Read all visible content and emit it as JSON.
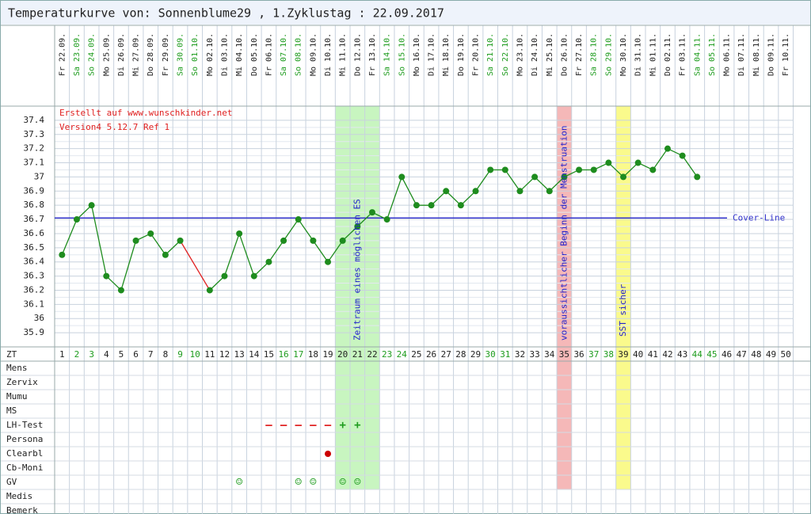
{
  "chart_data": {
    "type": "line",
    "title": "Temperaturkurve von: Sonnenblume29 , 1.Zyklustag : 22.09.2017",
    "annotations": [
      "Erstellt auf www.wunschkinder.net",
      "Version4 5.12.7 Ref 1"
    ],
    "categories": [
      "Fr 22.09.",
      "Sa 23.09.",
      "So 24.09.",
      "Mo 25.09.",
      "Di 26.09.",
      "Mi 27.09.",
      "Do 28.09.",
      "Fr 29.09.",
      "Sa 30.09.",
      "So 01.10.",
      "Mo 02.10.",
      "Di 03.10.",
      "Mi 04.10.",
      "Do 05.10.",
      "Fr 06.10.",
      "Sa 07.10.",
      "So 08.10.",
      "Mo 09.10.",
      "Di 10.10.",
      "Mi 11.10.",
      "Do 12.10.",
      "Fr 13.10.",
      "Sa 14.10.",
      "So 15.10.",
      "Mo 16.10.",
      "Di 17.10.",
      "Mi 18.10.",
      "Do 19.10.",
      "Fr 20.10.",
      "Sa 21.10.",
      "So 22.10.",
      "Mo 23.10.",
      "Di 24.10.",
      "Mi 25.10.",
      "Do 26.10.",
      "Fr 27.10.",
      "Sa 28.10.",
      "So 29.10.",
      "Mo 30.10.",
      "Di 31.10.",
      "Mi 01.11.",
      "Do 02.11.",
      "Fr 03.11.",
      "Sa 04.11.",
      "So 05.11.",
      "Mo 06.11.",
      "Di 07.11.",
      "Mi 08.11.",
      "Do 09.11.",
      "Fr 10.11."
    ],
    "cycle_day_label": "ZT",
    "cycle_days": [
      1,
      2,
      3,
      4,
      5,
      6,
      7,
      8,
      9,
      10,
      11,
      12,
      13,
      14,
      15,
      16,
      17,
      18,
      19,
      20,
      21,
      22,
      23,
      24,
      25,
      26,
      27,
      28,
      29,
      30,
      31,
      32,
      33,
      34,
      35,
      36,
      37,
      38,
      39,
      40,
      41,
      42,
      43,
      44,
      45,
      46,
      47,
      48,
      49,
      50
    ],
    "series": [
      {
        "color": "#1e8c1e",
        "values": [
          36.45,
          36.7,
          36.8,
          36.3,
          36.2,
          36.55,
          36.6,
          36.45,
          36.55,
          null,
          36.2,
          36.3,
          36.6,
          36.3,
          36.4,
          36.55,
          36.7,
          36.55,
          36.4,
          36.55,
          36.65,
          36.75,
          36.7,
          37.0,
          36.8,
          36.8,
          36.9,
          36.8,
          36.9,
          37.05,
          37.05,
          36.9,
          37.0,
          36.9,
          37.0,
          37.05,
          37.05,
          37.1,
          37.0,
          37.1,
          37.05,
          37.2,
          37.15,
          37.0,
          null,
          null,
          null,
          null,
          null,
          null
        ]
      }
    ],
    "gap_color": "#e02020",
    "ylim": [
      35.8,
      37.5
    ],
    "yticks": [
      35.9,
      36.0,
      36.1,
      36.2,
      36.3,
      36.4,
      36.5,
      36.6,
      36.7,
      36.8,
      36.9,
      37.0,
      37.1,
      37.2,
      37.3,
      37.4
    ],
    "grid": true,
    "cover_line": {
      "value": 36.71,
      "label": "Cover-Line",
      "color": "#3333cc"
    },
    "bands": [
      {
        "start": 20,
        "end": 22,
        "color": "#c8f5c0",
        "label": "Zeitraum eines möglichen ES"
      },
      {
        "start": 35,
        "end": 35,
        "color": "#f5b8b8",
        "label": "voraussichtlicher Beginn der Menstruation"
      },
      {
        "start": 39,
        "end": 39,
        "color": "#fafa8c",
        "label": "SST sicher"
      }
    ],
    "rows": [
      {
        "label": "Mens",
        "marks": []
      },
      {
        "label": "Zervix",
        "marks": []
      },
      {
        "label": "Mumu",
        "marks": []
      },
      {
        "label": "MS",
        "marks": []
      },
      {
        "label": "LH-Test",
        "marks": [
          {
            "day": 15,
            "symbol": "–",
            "color": "#e02020"
          },
          {
            "day": 16,
            "symbol": "–",
            "color": "#e02020"
          },
          {
            "day": 17,
            "symbol": "–",
            "color": "#e02020"
          },
          {
            "day": 18,
            "symbol": "–",
            "color": "#e02020"
          },
          {
            "day": 19,
            "symbol": "–",
            "color": "#e02020"
          },
          {
            "day": 20,
            "symbol": "+",
            "color": "#1e9c1e"
          },
          {
            "day": 21,
            "symbol": "+",
            "color": "#1e9c1e"
          }
        ]
      },
      {
        "label": "Persona",
        "marks": []
      },
      {
        "label": "Clearbl",
        "marks": [
          {
            "day": 19,
            "color": "#cc0000"
          }
        ]
      },
      {
        "label": "Cb-Moni",
        "marks": []
      },
      {
        "label": "GV",
        "marks": [
          {
            "day": 13,
            "symbol": "☺",
            "color": "#1e9c1e"
          },
          {
            "day": 17,
            "symbol": "☺",
            "color": "#1e9c1e"
          },
          {
            "day": 18,
            "symbol": "☺",
            "color": "#1e9c1e"
          },
          {
            "day": 20,
            "symbol": "☺",
            "color": "#1e9c1e"
          },
          {
            "day": 21,
            "symbol": "☺",
            "color": "#1e9c1e"
          }
        ]
      },
      {
        "label": "Medis",
        "marks": []
      },
      {
        "label": "Bemerk",
        "marks": []
      }
    ]
  }
}
